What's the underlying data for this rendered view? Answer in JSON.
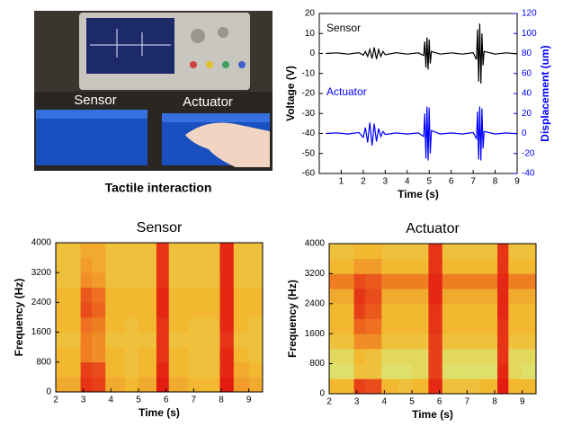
{
  "photo": {
    "labels": [
      "Sensor",
      "Actuator"
    ],
    "caption": "Tactile interaction"
  },
  "chart_data": [
    {
      "type": "line",
      "xlabel": "Time (s)",
      "ylabel": "Voltage (V)",
      "y2label": "Displacement (um)",
      "xlim": [
        0,
        9
      ],
      "xticks": [
        1,
        2,
        3,
        4,
        5,
        6,
        7,
        8,
        9
      ],
      "ylim": [
        -60,
        20
      ],
      "yticks": [
        -60,
        -50,
        -40,
        -30,
        -20,
        -10,
        0,
        10,
        20
      ],
      "y2lim": [
        -40,
        120
      ],
      "y2ticks": [
        -40,
        -20,
        0,
        20,
        40,
        60,
        80,
        100,
        120
      ],
      "x": [
        0.3,
        0.8,
        1.3,
        1.8,
        2.0,
        2.1,
        2.2,
        2.3,
        2.4,
        2.5,
        2.6,
        2.7,
        2.8,
        2.9,
        3.0,
        3.5,
        4.0,
        4.5,
        4.75,
        4.8,
        4.85,
        4.9,
        4.95,
        5.0,
        5.05,
        5.1,
        5.5,
        6.0,
        6.5,
        7.0,
        7.15,
        7.2,
        7.25,
        7.3,
        7.35,
        7.4,
        7.45,
        7.5,
        8.0,
        8.5,
        9.0
      ],
      "series": [
        {
          "name": "Sensor",
          "color": "#000000",
          "values": [
            0,
            0.3,
            -0.3,
            0.4,
            -0.8,
            1,
            -1.5,
            2,
            -2.5,
            3,
            -2.8,
            2,
            -1.5,
            1,
            -0.6,
            0.4,
            -0.3,
            0.3,
            -1,
            6,
            -7,
            8,
            -8,
            7,
            -5,
            1,
            -0.3,
            0.3,
            -0.3,
            0.4,
            -3,
            12,
            -14,
            15,
            -15,
            10,
            -6,
            1,
            -0.3,
            0.3,
            -0.2
          ]
        },
        {
          "name": "Actuator",
          "color": "#0000ff",
          "axis": "y2",
          "values": [
            0,
            0.5,
            -0.5,
            1,
            -4,
            6,
            -9,
            11,
            -12,
            10,
            -8,
            5,
            -3,
            2,
            -1,
            0.5,
            -0.5,
            0.5,
            -3,
            20,
            -25,
            27,
            -27,
            26,
            -20,
            3,
            -0.5,
            0.5,
            -0.5,
            1,
            -5,
            22,
            -26,
            27,
            -27,
            25,
            -15,
            2,
            -0.5,
            0.5,
            -0.3
          ]
        }
      ]
    },
    {
      "type": "heatmap",
      "title": "Sensor",
      "xlabel": "Time (s)",
      "ylabel": "Frequency (Hz)",
      "xlim": [
        2,
        9.5
      ],
      "xticks": [
        2,
        3,
        4,
        5,
        6,
        7,
        8,
        9
      ],
      "ylim": [
        0,
        4000
      ],
      "yticks": [
        0,
        800,
        1600,
        2400,
        3200,
        4000
      ],
      "colorscale": [
        [
          0,
          "#d8f080"
        ],
        [
          0.35,
          "#f2b830"
        ],
        [
          0.6,
          "#ee7020"
        ],
        [
          1,
          "#e01010"
        ]
      ],
      "x_edges": [
        2,
        2.5,
        2.9,
        3.3,
        3.8,
        4.5,
        5.0,
        5.65,
        6.1,
        6.8,
        7.5,
        7.95,
        8.45,
        9.0,
        9.5
      ],
      "y_edges": [
        0,
        400,
        800,
        1200,
        1600,
        2000,
        2400,
        2800,
        3200,
        3600,
        4000
      ],
      "values": [
        [
          0.4,
          0.4,
          0.85,
          0.8,
          0.4,
          0.35,
          0.4,
          0.95,
          0.4,
          0.35,
          0.35,
          0.95,
          0.45,
          0.4
        ],
        [
          0.35,
          0.35,
          0.8,
          0.75,
          0.35,
          0.3,
          0.35,
          0.9,
          0.35,
          0.3,
          0.3,
          0.9,
          0.4,
          0.35
        ],
        [
          0.35,
          0.35,
          0.55,
          0.5,
          0.35,
          0.3,
          0.35,
          0.85,
          0.35,
          0.3,
          0.3,
          0.9,
          0.35,
          0.3
        ],
        [
          0.3,
          0.3,
          0.55,
          0.5,
          0.3,
          0.3,
          0.3,
          0.85,
          0.3,
          0.3,
          0.3,
          0.85,
          0.3,
          0.3
        ],
        [
          0.35,
          0.35,
          0.6,
          0.55,
          0.35,
          0.3,
          0.35,
          0.85,
          0.35,
          0.3,
          0.3,
          0.9,
          0.35,
          0.3
        ],
        [
          0.35,
          0.35,
          0.75,
          0.65,
          0.35,
          0.35,
          0.35,
          0.9,
          0.35,
          0.35,
          0.35,
          0.9,
          0.35,
          0.35
        ],
        [
          0.35,
          0.35,
          0.7,
          0.6,
          0.35,
          0.35,
          0.35,
          0.9,
          0.35,
          0.35,
          0.35,
          0.9,
          0.35,
          0.35
        ],
        [
          0.3,
          0.3,
          0.5,
          0.45,
          0.3,
          0.3,
          0.3,
          0.85,
          0.3,
          0.3,
          0.3,
          0.9,
          0.3,
          0.3
        ],
        [
          0.3,
          0.3,
          0.45,
          0.4,
          0.3,
          0.3,
          0.3,
          0.85,
          0.3,
          0.3,
          0.3,
          0.9,
          0.3,
          0.3
        ],
        [
          0.3,
          0.3,
          0.4,
          0.4,
          0.3,
          0.3,
          0.3,
          0.85,
          0.3,
          0.3,
          0.3,
          0.9,
          0.3,
          0.3
        ]
      ]
    },
    {
      "type": "heatmap",
      "title": "Actuator",
      "xlabel": "Time (s)",
      "ylabel": "Frequency (Hz)",
      "xlim": [
        2,
        9.5
      ],
      "xticks": [
        2,
        3,
        4,
        5,
        6,
        7,
        8,
        9
      ],
      "ylim": [
        0,
        4000
      ],
      "yticks": [
        0,
        800,
        1600,
        2400,
        3200,
        4000
      ],
      "colorscale": [
        [
          0,
          "#d8f080"
        ],
        [
          0.35,
          "#f2b830"
        ],
        [
          0.6,
          "#ee7020"
        ],
        [
          1,
          "#e01010"
        ]
      ],
      "x_edges": [
        2,
        2.5,
        2.9,
        3.3,
        3.9,
        4.5,
        5.0,
        5.6,
        6.1,
        6.8,
        7.5,
        8.1,
        8.5,
        9.0,
        9.5
      ],
      "y_edges": [
        0,
        400,
        800,
        1200,
        1600,
        2000,
        2400,
        2800,
        3200,
        3600,
        4000
      ],
      "values": [
        [
          0.35,
          0.35,
          0.8,
          0.75,
          0.35,
          0.3,
          0.35,
          0.9,
          0.3,
          0.3,
          0.35,
          0.95,
          0.35,
          0.35
        ],
        [
          0.1,
          0.1,
          0.3,
          0.3,
          0.1,
          0.1,
          0.15,
          0.8,
          0.1,
          0.1,
          0.1,
          0.9,
          0.15,
          0.1
        ],
        [
          0.15,
          0.15,
          0.35,
          0.3,
          0.15,
          0.15,
          0.15,
          0.8,
          0.15,
          0.15,
          0.15,
          0.85,
          0.15,
          0.15
        ],
        [
          0.3,
          0.3,
          0.5,
          0.5,
          0.3,
          0.3,
          0.3,
          0.8,
          0.3,
          0.3,
          0.3,
          0.85,
          0.3,
          0.3
        ],
        [
          0.35,
          0.35,
          0.65,
          0.6,
          0.35,
          0.35,
          0.35,
          0.85,
          0.35,
          0.35,
          0.35,
          0.85,
          0.35,
          0.35
        ],
        [
          0.35,
          0.35,
          0.8,
          0.7,
          0.35,
          0.35,
          0.35,
          0.85,
          0.35,
          0.35,
          0.35,
          0.9,
          0.35,
          0.35
        ],
        [
          0.4,
          0.4,
          0.85,
          0.75,
          0.4,
          0.4,
          0.4,
          0.9,
          0.4,
          0.4,
          0.4,
          0.9,
          0.4,
          0.4
        ],
        [
          0.55,
          0.55,
          0.75,
          0.7,
          0.55,
          0.55,
          0.55,
          0.9,
          0.55,
          0.55,
          0.55,
          0.9,
          0.55,
          0.55
        ],
        [
          0.35,
          0.35,
          0.45,
          0.45,
          0.35,
          0.35,
          0.35,
          0.85,
          0.35,
          0.35,
          0.35,
          0.85,
          0.35,
          0.35
        ],
        [
          0.3,
          0.3,
          0.35,
          0.35,
          0.3,
          0.3,
          0.3,
          0.85,
          0.3,
          0.3,
          0.3,
          0.85,
          0.3,
          0.3
        ]
      ]
    }
  ]
}
